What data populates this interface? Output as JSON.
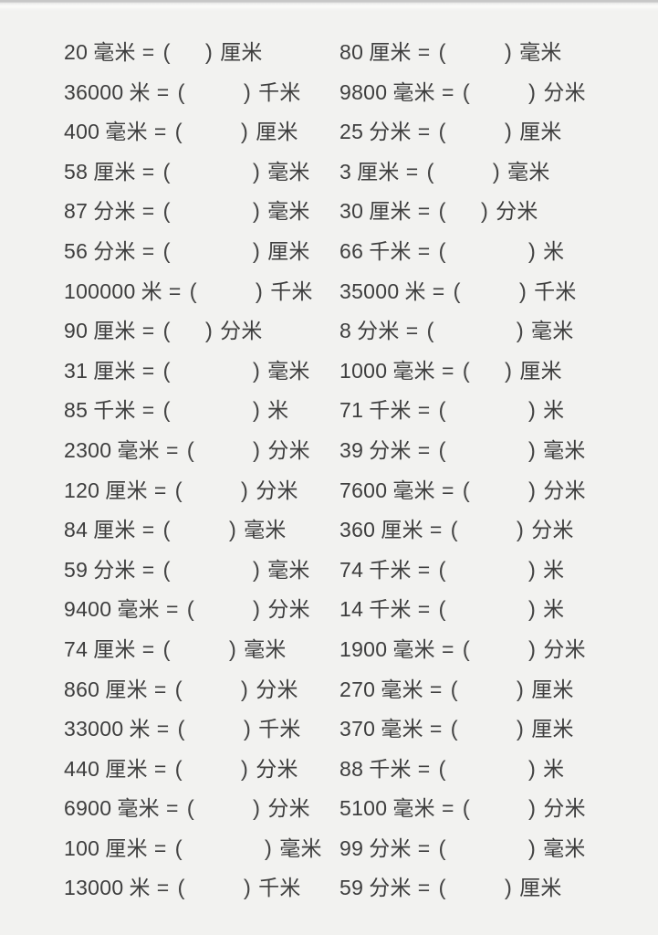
{
  "page": {
    "background_color": "#f2f2f0",
    "text_color": "#3e3e3e",
    "paren_open": "(",
    "paren_close": ")",
    "equals_sign": "="
  },
  "worksheet": {
    "description": "Chinese length-unit conversion fill-in-the-blank worksheet",
    "rows": [
      {
        "left": {
          "value": "20",
          "from_unit": "毫米",
          "blank_size": 1,
          "to_unit": "厘米"
        },
        "right": {
          "value": "80",
          "from_unit": "厘米",
          "blank_size": 2,
          "to_unit": "毫米"
        }
      },
      {
        "left": {
          "value": "36000",
          "from_unit": "米",
          "blank_size": 2,
          "to_unit": "千米"
        },
        "right": {
          "value": "9800",
          "from_unit": "毫米",
          "blank_size": 2,
          "to_unit": "分米"
        }
      },
      {
        "left": {
          "value": "400",
          "from_unit": "毫米",
          "blank_size": 2,
          "to_unit": "厘米"
        },
        "right": {
          "value": "25",
          "from_unit": "分米",
          "blank_size": 2,
          "to_unit": "厘米"
        }
      },
      {
        "left": {
          "value": "58",
          "from_unit": "厘米",
          "blank_size": 3,
          "to_unit": "毫米"
        },
        "right": {
          "value": "3",
          "from_unit": "厘米",
          "blank_size": 2,
          "to_unit": "毫米"
        }
      },
      {
        "left": {
          "value": "87",
          "from_unit": "分米",
          "blank_size": 3,
          "to_unit": "毫米"
        },
        "right": {
          "value": "30",
          "from_unit": "厘米",
          "blank_size": 1,
          "to_unit": "分米"
        }
      },
      {
        "left": {
          "value": "56",
          "from_unit": "分米",
          "blank_size": 3,
          "to_unit": "厘米"
        },
        "right": {
          "value": "66",
          "from_unit": "千米",
          "blank_size": 3,
          "to_unit": "米"
        }
      },
      {
        "left": {
          "value": "100000",
          "from_unit": "米",
          "blank_size": 2,
          "to_unit": "千米"
        },
        "right": {
          "value": "35000",
          "from_unit": "米",
          "blank_size": 2,
          "to_unit": "千米"
        }
      },
      {
        "left": {
          "value": "90",
          "from_unit": "厘米",
          "blank_size": 1,
          "to_unit": "分米"
        },
        "right": {
          "value": "8",
          "from_unit": "分米",
          "blank_size": 3,
          "to_unit": "毫米"
        }
      },
      {
        "left": {
          "value": "31",
          "from_unit": "厘米",
          "blank_size": 3,
          "to_unit": "毫米"
        },
        "right": {
          "value": "1000",
          "from_unit": "毫米",
          "blank_size": 1,
          "to_unit": "厘米"
        }
      },
      {
        "left": {
          "value": "85",
          "from_unit": "千米",
          "blank_size": 3,
          "to_unit": "米"
        },
        "right": {
          "value": "71",
          "from_unit": "千米",
          "blank_size": 3,
          "to_unit": "米"
        }
      },
      {
        "left": {
          "value": "2300",
          "from_unit": "毫米",
          "blank_size": 2,
          "to_unit": "分米"
        },
        "right": {
          "value": "39",
          "from_unit": "分米",
          "blank_size": 3,
          "to_unit": "毫米"
        }
      },
      {
        "left": {
          "value": "120",
          "from_unit": "厘米",
          "blank_size": 2,
          "to_unit": "分米"
        },
        "right": {
          "value": "7600",
          "from_unit": "毫米",
          "blank_size": 2,
          "to_unit": "分米"
        }
      },
      {
        "left": {
          "value": "84",
          "from_unit": "厘米",
          "blank_size": 2,
          "to_unit": "毫米"
        },
        "right": {
          "value": "360",
          "from_unit": "厘米",
          "blank_size": 2,
          "to_unit": "分米"
        }
      },
      {
        "left": {
          "value": "59",
          "from_unit": "分米",
          "blank_size": 3,
          "to_unit": "毫米"
        },
        "right": {
          "value": "74",
          "from_unit": "千米",
          "blank_size": 3,
          "to_unit": "米"
        }
      },
      {
        "left": {
          "value": "9400",
          "from_unit": "毫米",
          "blank_size": 2,
          "to_unit": "分米"
        },
        "right": {
          "value": "14",
          "from_unit": "千米",
          "blank_size": 3,
          "to_unit": "米"
        }
      },
      {
        "left": {
          "value": "74",
          "from_unit": "厘米",
          "blank_size": 2,
          "to_unit": "毫米"
        },
        "right": {
          "value": "1900",
          "from_unit": "毫米",
          "blank_size": 2,
          "to_unit": "分米"
        }
      },
      {
        "left": {
          "value": "860",
          "from_unit": "厘米",
          "blank_size": 2,
          "to_unit": "分米"
        },
        "right": {
          "value": "270",
          "from_unit": "毫米",
          "blank_size": 2,
          "to_unit": "厘米"
        }
      },
      {
        "left": {
          "value": "33000",
          "from_unit": "米",
          "blank_size": 2,
          "to_unit": "千米"
        },
        "right": {
          "value": "370",
          "from_unit": "毫米",
          "blank_size": 2,
          "to_unit": "厘米"
        }
      },
      {
        "left": {
          "value": "440",
          "from_unit": "厘米",
          "blank_size": 2,
          "to_unit": "分米"
        },
        "right": {
          "value": "88",
          "from_unit": "千米",
          "blank_size": 3,
          "to_unit": "米"
        }
      },
      {
        "left": {
          "value": "6900",
          "from_unit": "毫米",
          "blank_size": 2,
          "to_unit": "分米"
        },
        "right": {
          "value": "5100",
          "from_unit": "毫米",
          "blank_size": 2,
          "to_unit": "分米"
        }
      },
      {
        "left": {
          "value": "100",
          "from_unit": "厘米",
          "blank_size": 3,
          "to_unit": "毫米"
        },
        "right": {
          "value": "99",
          "from_unit": "分米",
          "blank_size": 3,
          "to_unit": "毫米"
        }
      },
      {
        "left": {
          "value": "13000",
          "from_unit": "米",
          "blank_size": 2,
          "to_unit": "千米"
        },
        "right": {
          "value": "59",
          "from_unit": "分米",
          "blank_size": 2,
          "to_unit": "厘米"
        }
      }
    ]
  }
}
